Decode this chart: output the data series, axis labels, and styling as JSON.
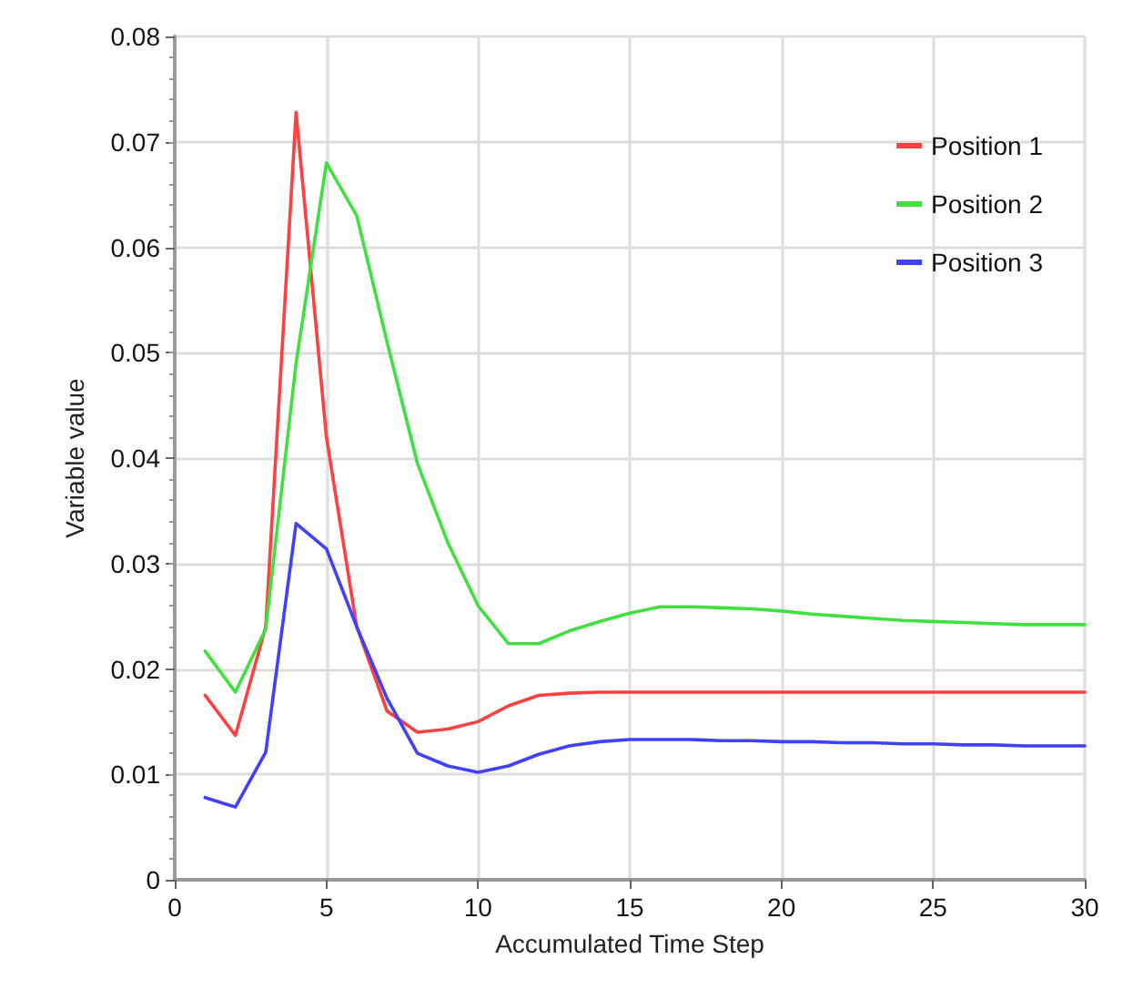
{
  "chart_data": {
    "type": "line",
    "xlabel": "Accumulated Time Step",
    "ylabel": "Variable value",
    "x": [
      1,
      2,
      3,
      4,
      5,
      6,
      7,
      8,
      9,
      10,
      11,
      12,
      13,
      14,
      15,
      16,
      17,
      18,
      19,
      20,
      21,
      22,
      23,
      24,
      25,
      26,
      27,
      28,
      29,
      30
    ],
    "series": [
      {
        "name": "Position 1",
        "color": "#ff4040",
        "values": [
          0.0175,
          0.0137,
          0.024,
          0.0728,
          0.042,
          0.024,
          0.016,
          0.014,
          0.0143,
          0.015,
          0.0165,
          0.0175,
          0.0177,
          0.0178,
          0.0178,
          0.0178,
          0.0178,
          0.0178,
          0.0178,
          0.0178,
          0.0178,
          0.0178,
          0.0178,
          0.0178,
          0.0178,
          0.0178,
          0.0178,
          0.0178,
          0.0178,
          0.0178
        ]
      },
      {
        "name": "Position 2",
        "color": "#40e040",
        "values": [
          0.0217,
          0.0178,
          0.0238,
          0.049,
          0.068,
          0.063,
          0.051,
          0.0395,
          0.032,
          0.026,
          0.0224,
          0.0224,
          0.0236,
          0.0245,
          0.0253,
          0.0259,
          0.0259,
          0.0258,
          0.0257,
          0.0255,
          0.0252,
          0.025,
          0.0248,
          0.0246,
          0.0245,
          0.0244,
          0.0243,
          0.0242,
          0.0242,
          0.0242
        ]
      },
      {
        "name": "Position 3",
        "color": "#4040ff",
        "values": [
          0.0078,
          0.0069,
          0.0121,
          0.0338,
          0.0314,
          0.024,
          0.0172,
          0.012,
          0.0108,
          0.0102,
          0.0108,
          0.0119,
          0.0127,
          0.0131,
          0.0133,
          0.0133,
          0.0133,
          0.0132,
          0.0132,
          0.0131,
          0.0131,
          0.013,
          0.013,
          0.0129,
          0.0129,
          0.0128,
          0.0128,
          0.0127,
          0.0127,
          0.0127
        ]
      }
    ],
    "xlim": [
      0,
      30
    ],
    "xticks": [
      0,
      5,
      10,
      15,
      20,
      25,
      30
    ],
    "ylim": [
      0,
      0.08
    ],
    "yticks": [
      0,
      0.01,
      0.02,
      0.03,
      0.04,
      0.05,
      0.06,
      0.07,
      0.08
    ],
    "grid": true,
    "legend": "top right",
    "marker": "none",
    "line_style": "solid"
  }
}
